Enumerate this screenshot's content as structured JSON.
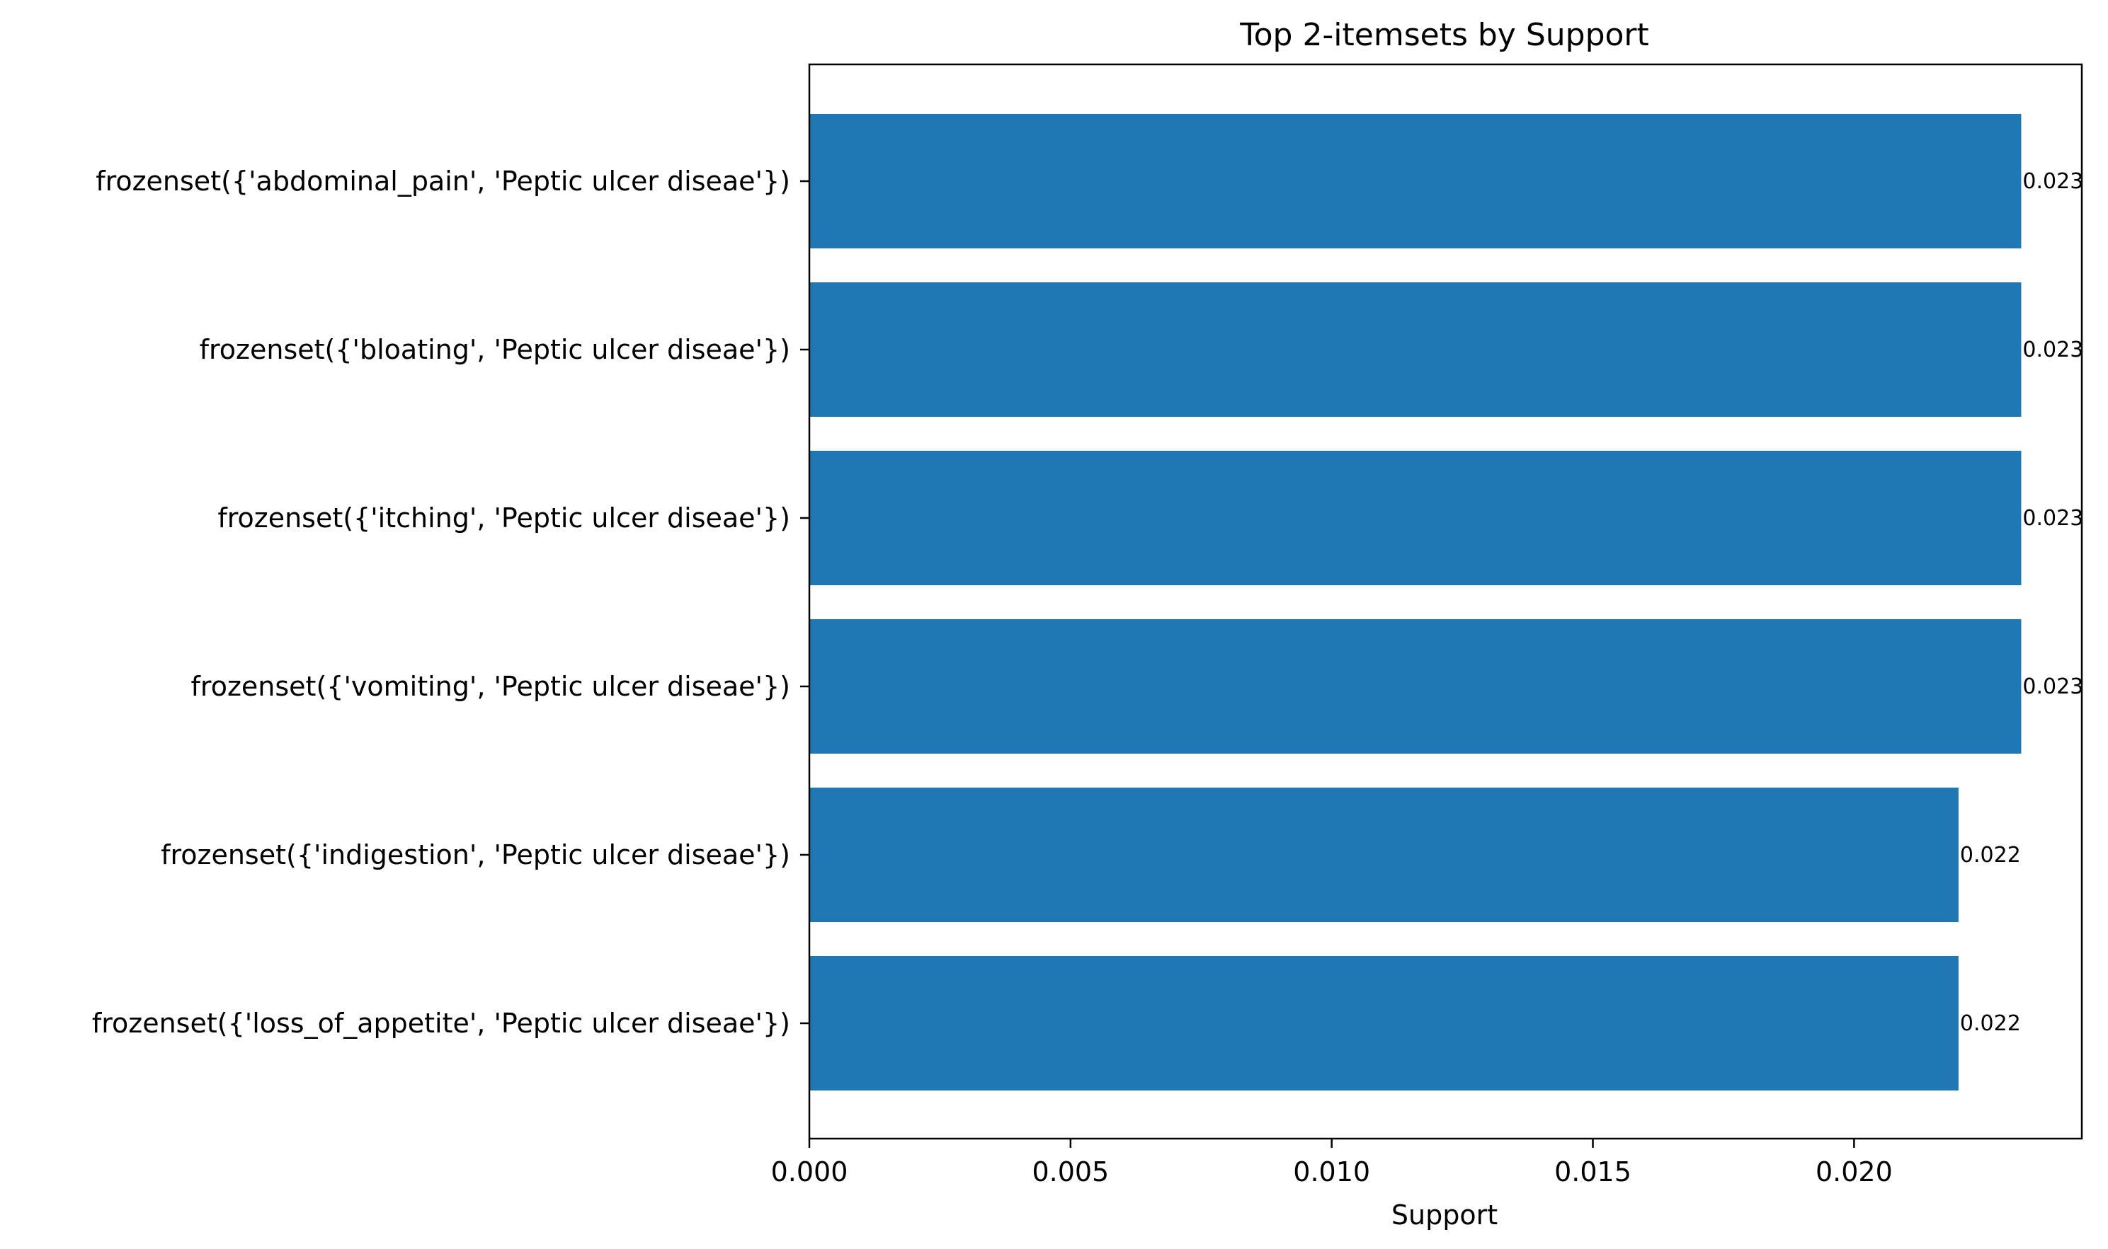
{
  "chart_data": {
    "type": "bar",
    "orientation": "horizontal",
    "title": "Top 2-itemsets by Support",
    "xlabel": "Support",
    "ylabel": "",
    "categories": [
      "frozenset({'abdominal_pain', 'Peptic ulcer diseae'})",
      "frozenset({'bloating', 'Peptic ulcer diseae'})",
      "frozenset({'itching', 'Peptic ulcer diseae'})",
      "frozenset({'vomiting', 'Peptic ulcer diseae'})",
      "frozenset({'indigestion', 'Peptic ulcer diseae'})",
      "frozenset({'loss_of_appetite', 'Peptic ulcer diseae'})"
    ],
    "values": [
      0.0232,
      0.0232,
      0.0232,
      0.0232,
      0.022,
      0.022
    ],
    "value_labels": [
      "0.023",
      "0.023",
      "0.023",
      "0.023",
      "0.022",
      "0.022"
    ],
    "xticks": [
      0.0,
      0.005,
      0.01,
      0.015,
      0.02
    ],
    "xtick_labels": [
      "0.000",
      "0.005",
      "0.010",
      "0.015",
      "0.020"
    ],
    "xlim": [
      0,
      0.02436
    ],
    "bar_color": "#1f77b4",
    "grid": false,
    "legend": "none"
  }
}
